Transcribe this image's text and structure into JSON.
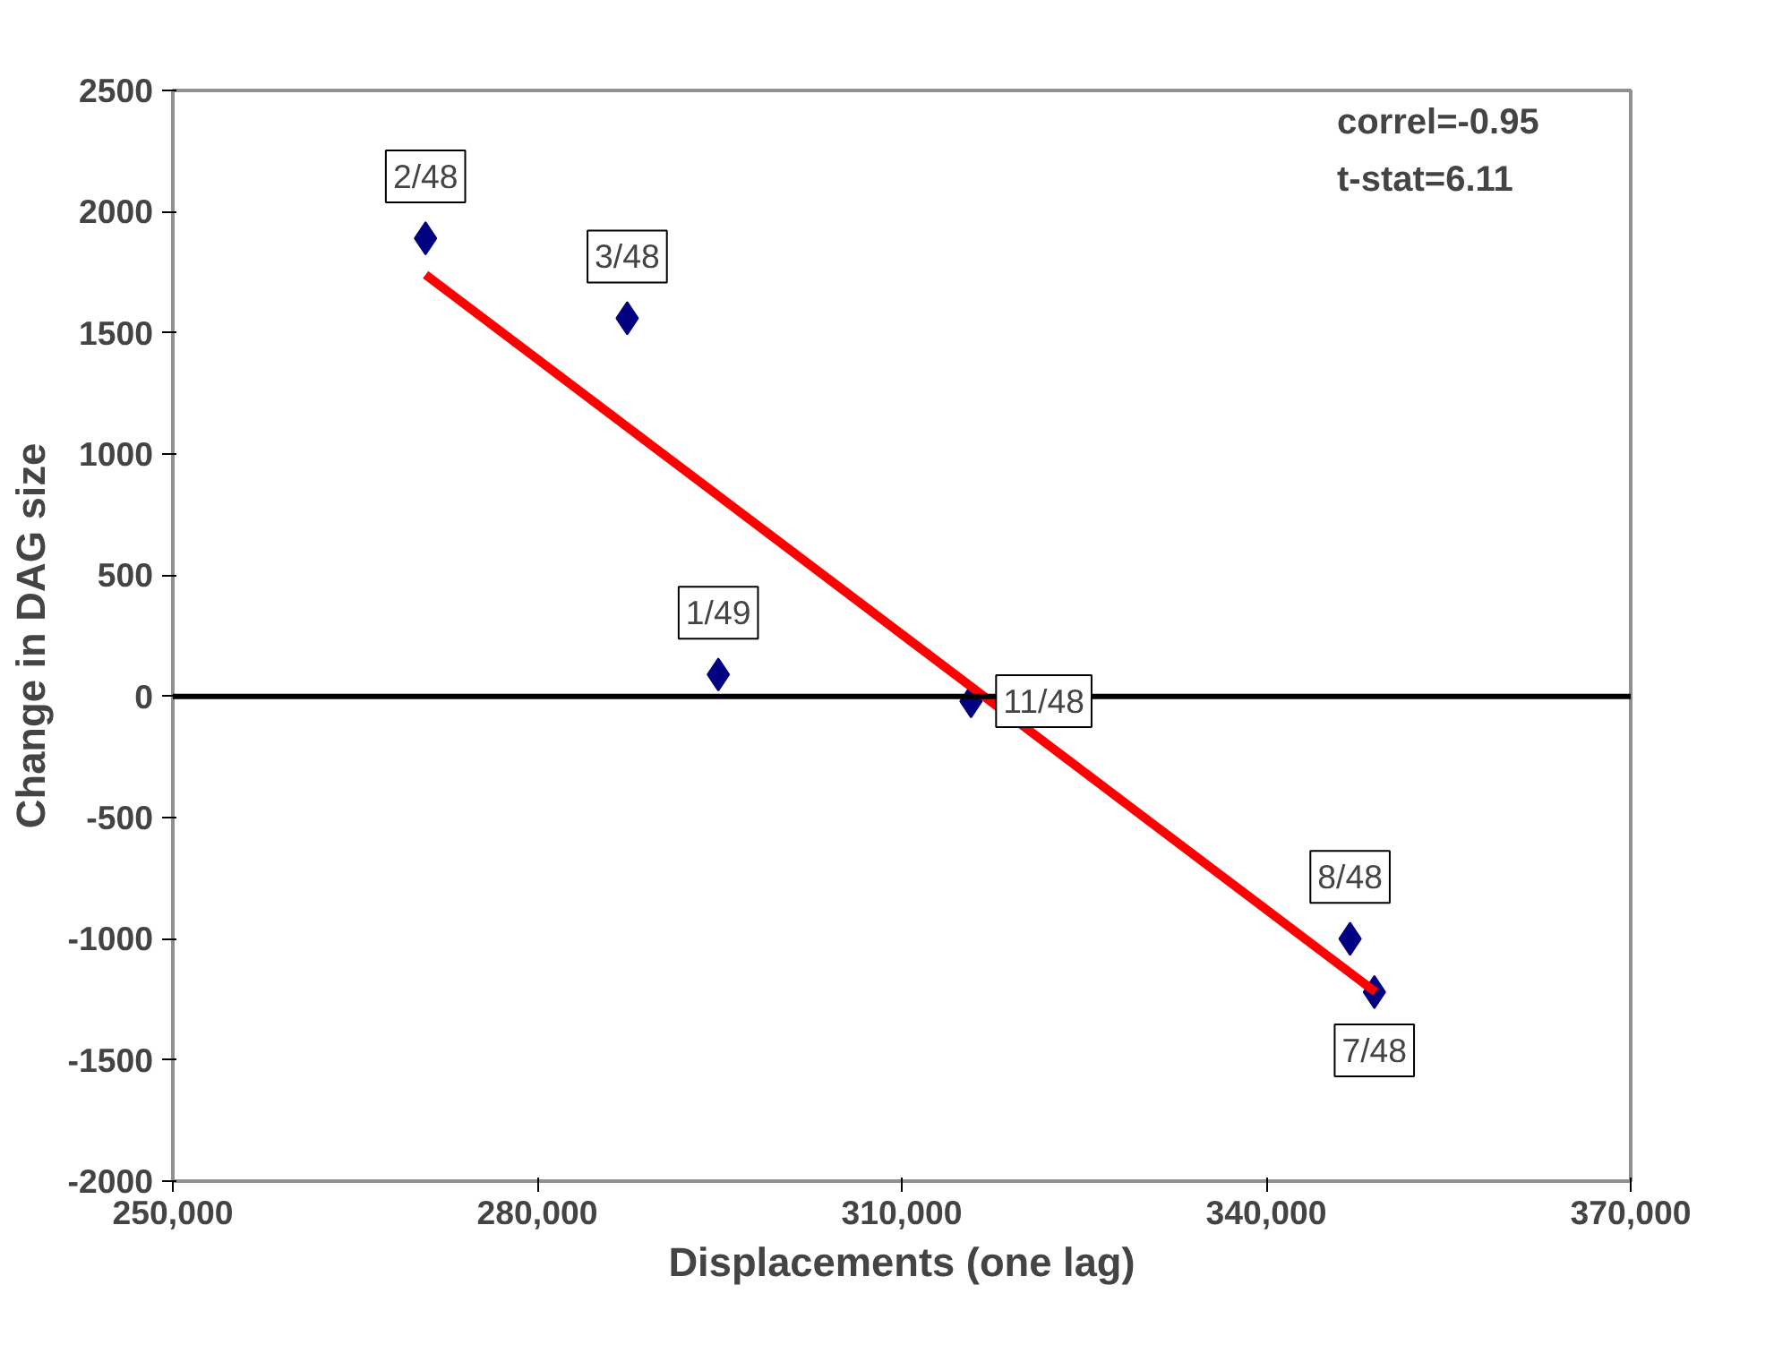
{
  "chart_data": {
    "type": "scatter",
    "xlabel": "Displacements (one lag)",
    "ylabel": "Change in DAG size",
    "xlim": [
      250000,
      370000
    ],
    "xticks": [
      {
        "value": 250000,
        "label": "250,000"
      },
      {
        "value": 280000,
        "label": "280,000"
      },
      {
        "value": 310000,
        "label": "310,000"
      },
      {
        "value": 340000,
        "label": "340,000"
      },
      {
        "value": 370000,
        "label": "370,000"
      }
    ],
    "ylim": [
      -2000,
      2500
    ],
    "yticks": [
      -2000,
      -1500,
      -1000,
      -500,
      0,
      500,
      1000,
      1500,
      2000,
      2500
    ],
    "grid": false,
    "series": [
      {
        "marker": "diamond",
        "color": "#000080",
        "x": [
          270800,
          287400,
          294900,
          315700,
          346900,
          348900
        ],
        "values": [
          1890,
          1560,
          90,
          -20,
          -1000,
          -1220
        ]
      },
      {
        "type": "line",
        "color": "#ff0000",
        "x": [
          270800,
          349000
        ],
        "values": [
          1740,
          -1220
        ]
      }
    ],
    "ref_lines": [
      {
        "axis": "y",
        "value": 0,
        "color": "#000000"
      }
    ],
    "annotations": [
      {
        "text": "2/48",
        "x": 270800,
        "y": 1890
      },
      {
        "text": "3/48",
        "x": 287400,
        "y": 1560
      },
      {
        "text": "1/49",
        "x": 294900,
        "y": 90
      },
      {
        "text": "11/48",
        "x": 315700,
        "y": -20
      },
      {
        "text": "8/48",
        "x": 346900,
        "y": -1000
      },
      {
        "text": "7/48",
        "x": 348900,
        "y": -1220
      },
      "correl=-0.95",
      "t-stat=6.11"
    ]
  }
}
